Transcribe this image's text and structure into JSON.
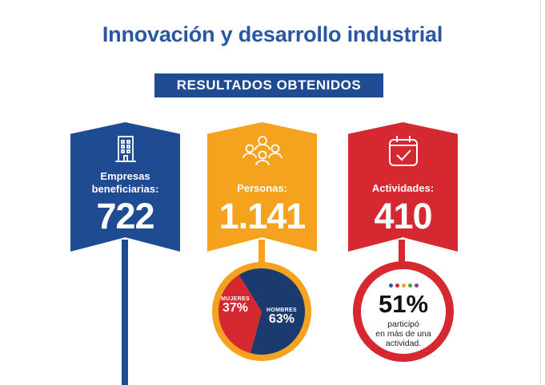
{
  "header": {
    "title": "Innovación y desarrollo industrial",
    "badge": "RESULTADOS OBTENIDOS"
  },
  "colors": {
    "blue": "#1f4b93",
    "title_blue": "#2a57a4",
    "orange": "#f5a21e",
    "red": "#d62830",
    "navy": "#1b3a6e"
  },
  "cards": [
    {
      "icon": "building-icon",
      "label_line1": "Empresas",
      "label_line2": "beneficiarias:",
      "value": "722"
    },
    {
      "icon": "people-group-icon",
      "label": "Personas:",
      "value": "1.141"
    },
    {
      "icon": "calendar-check-icon",
      "label": "Actividades:",
      "value": "410"
    }
  ],
  "gender_split": {
    "women_label": "MUJERES",
    "women_pct": "37%",
    "women_value": 37,
    "men_label": "HOMBRES",
    "men_pct": "63%",
    "men_value": 63
  },
  "participation": {
    "dots": [
      "#2a57a4",
      "#d62830",
      "#f5a21e",
      "#4c9f3d",
      "#8a3c98"
    ],
    "percent": "51%",
    "note_line1": "participó",
    "note_line2": "en más de una",
    "note_line3": "actividad."
  }
}
